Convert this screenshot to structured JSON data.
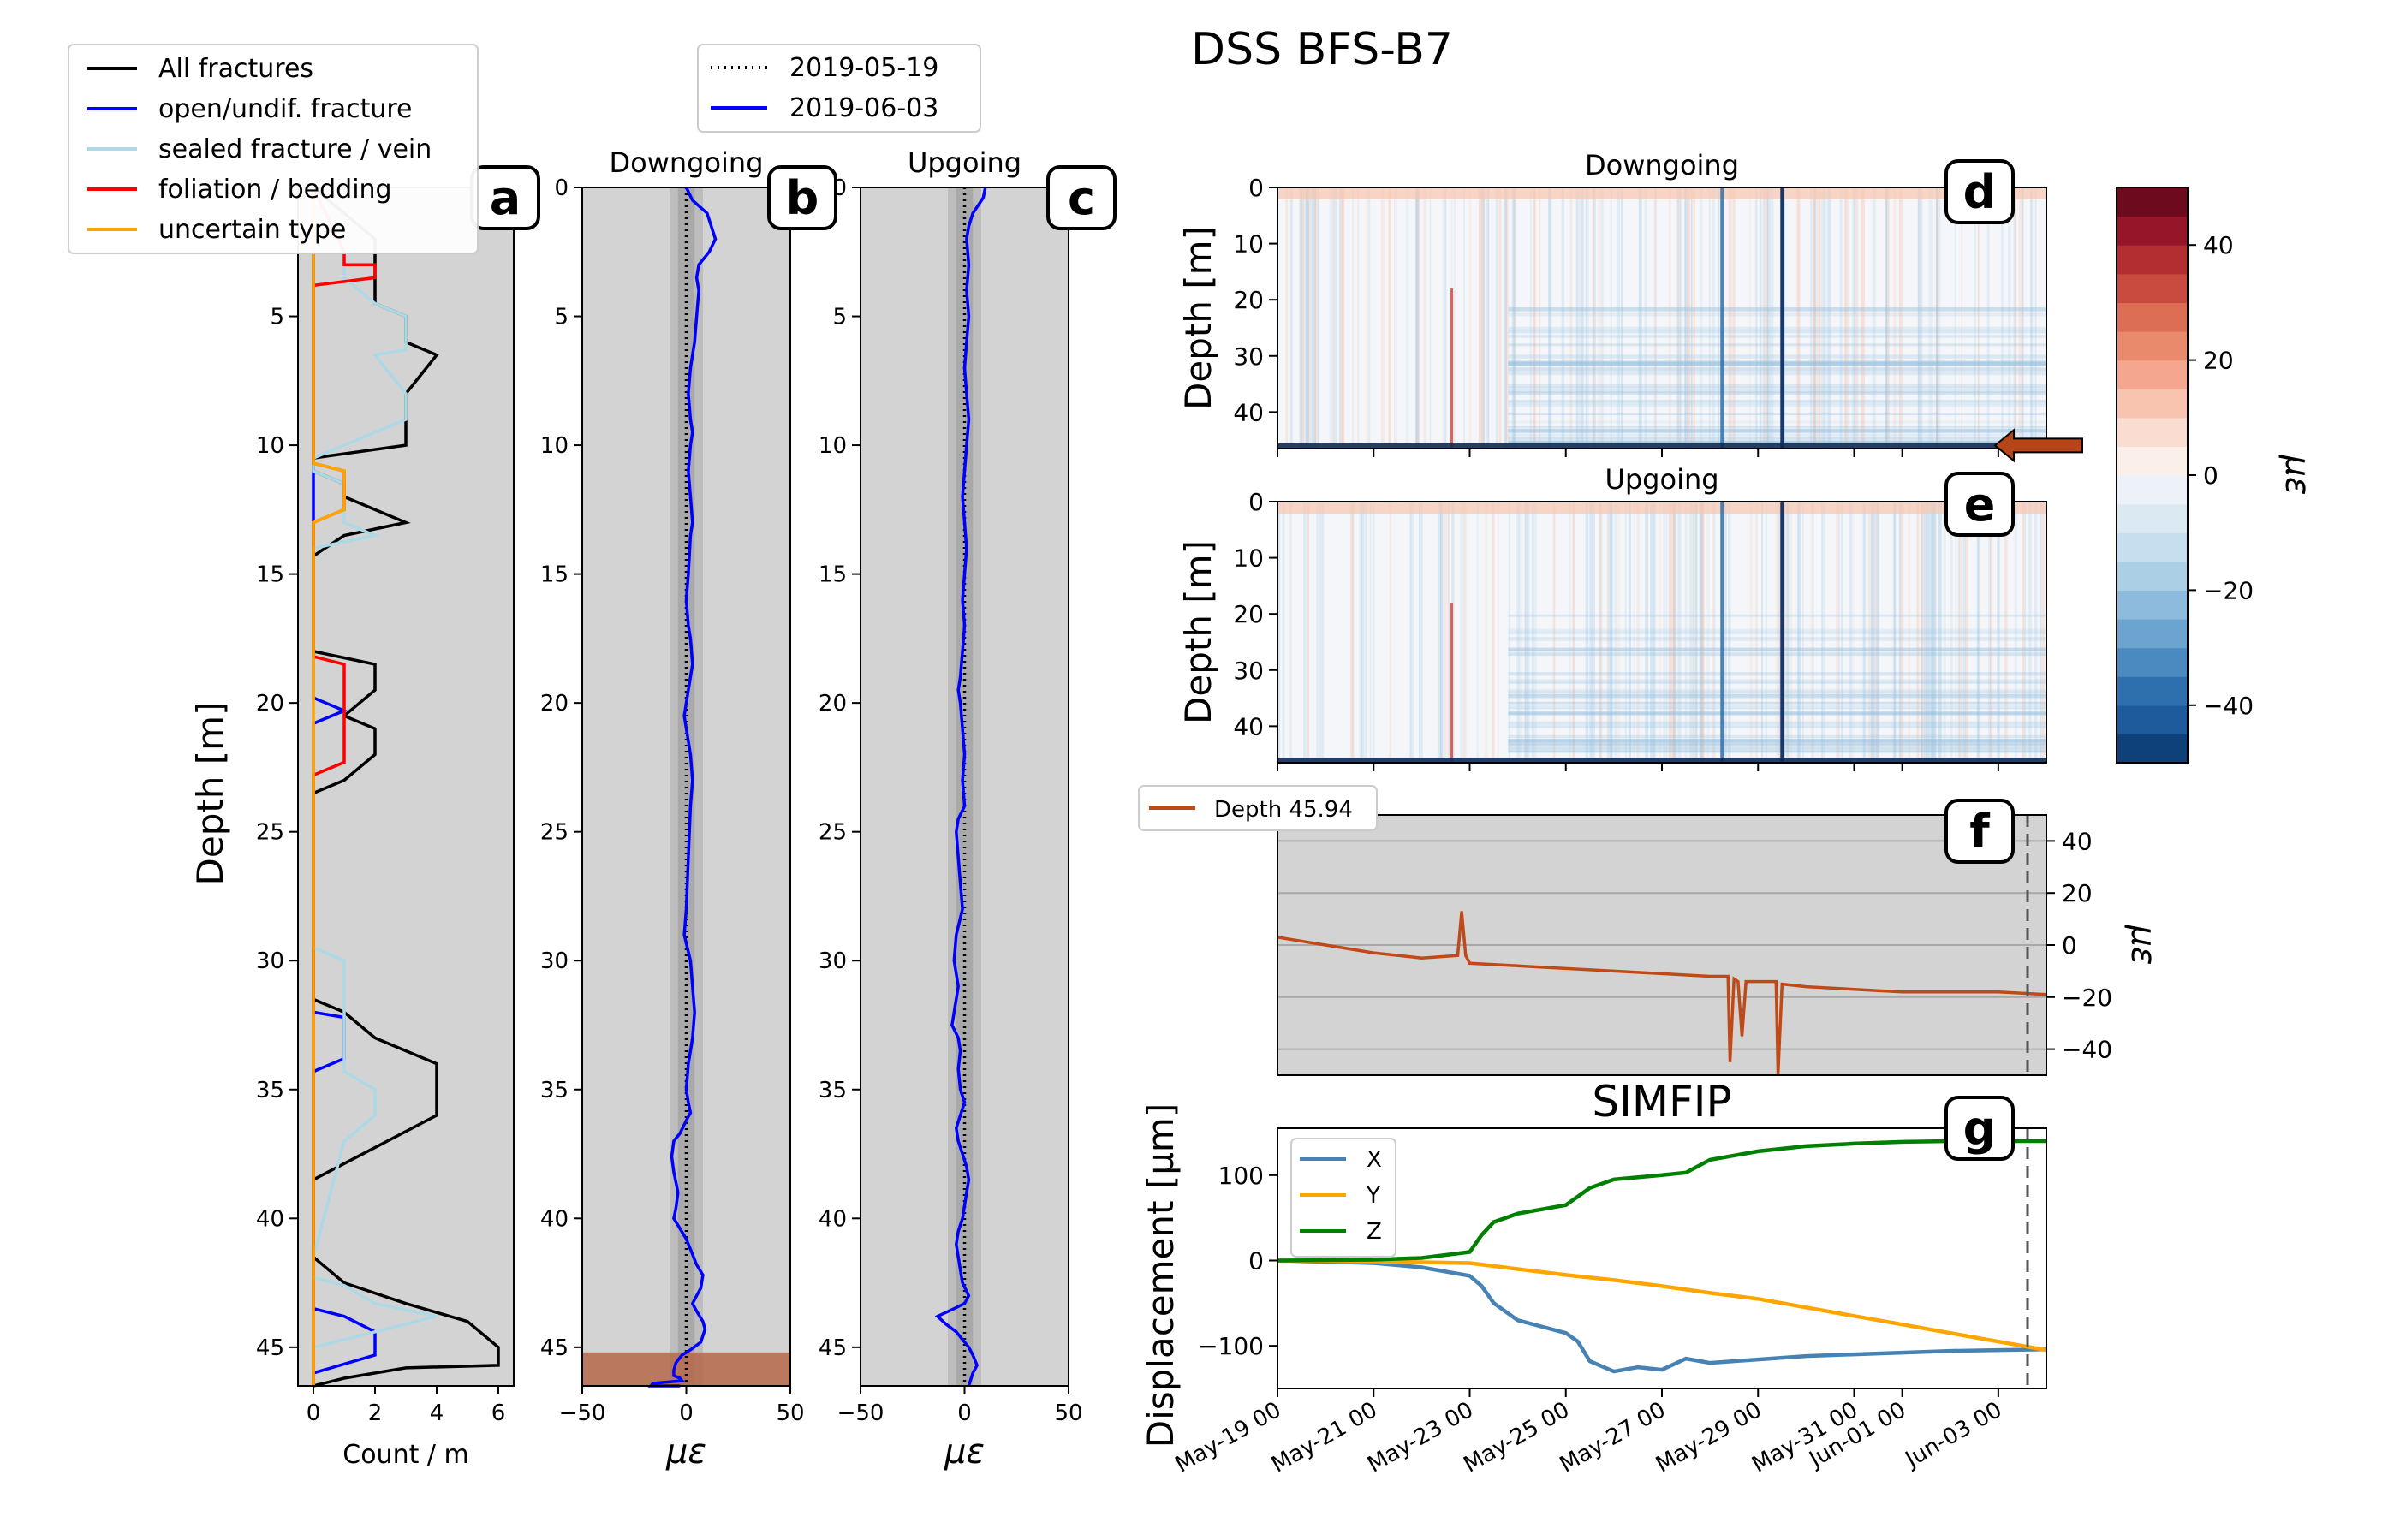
{
  "figure_title": "DSS BFS-B7",
  "panel_letters": [
    "a",
    "b",
    "c",
    "d",
    "e",
    "f",
    "g"
  ],
  "colors": {
    "panel_bg": "#d3d3d3",
    "band_dark": "#a9a9a9",
    "all_fractures": "#000000",
    "open_fracture": "#0000ff",
    "sealed_fracture": "#add8e6",
    "foliation": "#ff0000",
    "uncertain": "#ffa500",
    "strain_trace": "#0000ff",
    "depth_trace": "#c04a17",
    "highlight_band": "#b5674a",
    "arrow": "#b5461a",
    "simfip_x": "#4682b4",
    "simfip_y": "#ffa500",
    "simfip_z": "#008000"
  },
  "chart_data": [
    {
      "panel": "a",
      "type": "line",
      "xlabel": "Count / m",
      "ylabel": "Depth [m]",
      "xlim": [
        -0.5,
        6.5
      ],
      "ylim": [
        46.5,
        0
      ],
      "x_ticks": [
        0,
        2,
        4,
        6
      ],
      "y_ticks": [
        5,
        10,
        15,
        20,
        25,
        30,
        35,
        40,
        45
      ],
      "legend": [
        "All fractures",
        "open/undif. fracture",
        "sealed fracture / vein",
        "foliation / bedding",
        "uncertain type"
      ],
      "series": [
        {
          "name": "All fractures",
          "color": "#000000",
          "x": [
            0,
            2,
            2,
            2,
            3,
            3,
            4,
            3,
            3,
            0,
            0,
            1,
            1,
            3,
            1,
            0,
            0,
            2,
            2,
            1,
            2,
            2,
            1,
            0,
            0,
            0,
            1,
            2,
            4,
            4,
            0,
            0,
            0,
            1,
            3,
            5,
            6,
            6,
            3,
            1,
            0,
            0
          ],
          "y": [
            0,
            2,
            3.5,
            4.5,
            5,
            6,
            6.5,
            8,
            10,
            10.5,
            11,
            11.5,
            12,
            13,
            13.5,
            14.3,
            18,
            18.5,
            19.5,
            20.5,
            21,
            22,
            23,
            23.5,
            29.5,
            31.5,
            32,
            33,
            34,
            36,
            38.5,
            40,
            41.5,
            42.5,
            43.3,
            44,
            45,
            45.7,
            45.8,
            46.2,
            46.5,
            46.5
          ]
        },
        {
          "name": "open/undif. fracture",
          "color": "#0000ff",
          "x": [
            0,
            0,
            1,
            0,
            0,
            0,
            1,
            1,
            0,
            0,
            0,
            1,
            2,
            2,
            0,
            0
          ],
          "y": [
            0,
            19.8,
            20.3,
            20.8,
            21,
            32,
            32.2,
            33.8,
            34.3,
            40,
            43.5,
            43.8,
            44.4,
            45.3,
            46,
            46.5
          ]
        },
        {
          "name": "sealed fracture / vein",
          "color": "#add8e6",
          "x": [
            0,
            1,
            1,
            2,
            3,
            3,
            2,
            3,
            3,
            0,
            0,
            1,
            1,
            1,
            2,
            0,
            0,
            1,
            1,
            1,
            2,
            2,
            1,
            0,
            0,
            1,
            2,
            4,
            2,
            0,
            0
          ],
          "y": [
            0,
            2,
            3.5,
            4.5,
            5,
            6.3,
            6.5,
            8,
            9,
            10.5,
            11,
            11.5,
            12.5,
            13,
            13.5,
            14,
            29.5,
            30,
            32,
            34.3,
            35,
            36,
            37,
            41.5,
            42.3,
            42.6,
            43.3,
            43.8,
            44.4,
            45,
            46.5
          ]
        },
        {
          "name": "foliation / bedding",
          "color": "#ff0000",
          "x": [
            0,
            1,
            1,
            2,
            2,
            0,
            0,
            1,
            1,
            0,
            0,
            0,
            1,
            1,
            1,
            0,
            0
          ],
          "y": [
            0,
            2.5,
            3,
            3,
            3.5,
            3.8,
            10.7,
            11,
            12.5,
            13,
            18,
            18.2,
            18.5,
            19.5,
            22.3,
            22.8,
            46.5
          ]
        },
        {
          "name": "uncertain type",
          "color": "#ffa500",
          "x": [
            0,
            0,
            1,
            1,
            0,
            0
          ],
          "y": [
            0,
            10.7,
            11,
            12.5,
            13,
            46.5
          ]
        }
      ]
    },
    {
      "panel": "b",
      "type": "line",
      "title": "Downgoing",
      "xlabel": "με",
      "xlim": [
        -50,
        50
      ],
      "ylim": [
        46.5,
        0
      ],
      "x_ticks": [
        -50,
        0,
        50
      ],
      "y_ticks": [
        0,
        5,
        10,
        15,
        20,
        25,
        30,
        35,
        40,
        45
      ],
      "light_band": [
        -8,
        8
      ],
      "dark_band": [
        -4,
        4
      ],
      "highlight_depth_range": [
        45.2,
        46.5
      ],
      "legend": [
        "2019-05-19",
        "2019-06-03"
      ],
      "series": [
        {
          "name": "2019-05-19",
          "style": "dotted",
          "color": "#000000",
          "x": [
            0,
            0
          ],
          "y": [
            0,
            46.5
          ]
        },
        {
          "name": "2019-06-03",
          "color": "#0000ff",
          "x": [
            0,
            3,
            10,
            14,
            11,
            6,
            5,
            6,
            5,
            4,
            3,
            2,
            1,
            2,
            3,
            2,
            1,
            2,
            3,
            2,
            1,
            0,
            1,
            2,
            3,
            1,
            -1,
            2,
            3,
            2,
            1,
            0,
            -1,
            2,
            3,
            4,
            3,
            2,
            1,
            0,
            1,
            2,
            0,
            -3,
            -6,
            -7,
            -6,
            -5,
            -4,
            -5,
            -6,
            -3,
            0,
            2,
            5,
            8,
            7,
            5,
            3,
            5,
            8,
            9,
            7,
            2,
            -2,
            -5,
            -6,
            -6,
            -3,
            -2,
            -16,
            -17,
            -9,
            -3
          ],
          "y": [
            0,
            0.5,
            1,
            2,
            2.5,
            3,
            3.5,
            4,
            5,
            6,
            6.5,
            7,
            8,
            9,
            9.5,
            10,
            11,
            12,
            13,
            13.5,
            15,
            16,
            17,
            17.5,
            18.5,
            19.5,
            20.5,
            22,
            23,
            24,
            26,
            28,
            29,
            30,
            31,
            32,
            33,
            33.5,
            34,
            35,
            35.5,
            35.9,
            36.2,
            36.7,
            37,
            37.6,
            38.2,
            38.6,
            39,
            39.6,
            40,
            40.4,
            40.8,
            41.2,
            41.8,
            42.2,
            42.7,
            43,
            43.3,
            43.6,
            44,
            44.3,
            44.8,
            45.1,
            45.3,
            45.6,
            45.9,
            46.1,
            46.2,
            46.3,
            46.4,
            46.5,
            46.5,
            46.5
          ]
        }
      ]
    },
    {
      "panel": "c",
      "type": "line",
      "title": "Upgoing",
      "xlabel": "με",
      "xlim": [
        -50,
        50
      ],
      "ylim": [
        46.5,
        0
      ],
      "x_ticks": [
        -50,
        0,
        50
      ],
      "y_ticks": [
        0,
        5,
        10,
        15,
        20,
        25,
        30,
        35,
        40,
        45
      ],
      "light_band": [
        -8,
        8
      ],
      "dark_band": [
        -4,
        4
      ],
      "series": [
        {
          "name": "2019-05-19",
          "style": "dotted",
          "color": "#000000",
          "x": [
            0,
            0
          ],
          "y": [
            0,
            46.5
          ]
        },
        {
          "name": "2019-06-03",
          "color": "#0000ff",
          "x": [
            10,
            9,
            4,
            2,
            1,
            2,
            1,
            2,
            1,
            0,
            1,
            2,
            1,
            0,
            -1,
            0,
            1,
            0,
            -1,
            0,
            -1,
            -2,
            -3,
            -2,
            -1,
            0,
            -1,
            0,
            -3,
            -4,
            -3,
            -2,
            -1,
            -4,
            -5,
            -3,
            -5,
            -6,
            -3,
            -2,
            -3,
            -2,
            0,
            -2,
            -4,
            -3,
            -1,
            1,
            2,
            1,
            -1,
            -3,
            -4,
            -3,
            -2,
            -1,
            2,
            0,
            -5,
            -13,
            -9,
            -4,
            -1,
            2,
            4,
            6,
            4,
            2
          ],
          "y": [
            0,
            0.4,
            1,
            1.5,
            2,
            3,
            4,
            5,
            6,
            7,
            8,
            9,
            10,
            11,
            12,
            13,
            14,
            15,
            16,
            17,
            18,
            19,
            19.5,
            20,
            21,
            22,
            23,
            24,
            24.5,
            25,
            26,
            27,
            28,
            29,
            30,
            31,
            32,
            32.5,
            33,
            33.5,
            34.2,
            35,
            35.5,
            36,
            36.5,
            37,
            37.5,
            38,
            38.5,
            39,
            40,
            40.5,
            41,
            41.5,
            42,
            42.5,
            43,
            43.3,
            43.5,
            43.8,
            44.1,
            44.4,
            44.7,
            45,
            45.3,
            45.7,
            46,
            46.5
          ]
        }
      ]
    },
    {
      "panel": "d",
      "type": "heatmap",
      "title": "Downgoing",
      "ylabel": "Depth [m]",
      "ylim": [
        46.5,
        0
      ],
      "y_ticks": [
        0,
        10,
        20,
        30,
        40
      ],
      "colorbar": {
        "label": "με",
        "range": [
          -50,
          50
        ],
        "ticks": [
          40,
          20,
          0,
          -20,
          -40
        ]
      },
      "marked_depth": 45.94
    },
    {
      "panel": "e",
      "type": "heatmap",
      "title": "Upgoing",
      "ylabel": "Depth [m]",
      "ylim": [
        46.5,
        0
      ],
      "y_ticks": [
        0,
        10,
        20,
        30,
        40
      ]
    },
    {
      "panel": "f",
      "type": "line",
      "ylabel": "με",
      "ylim": [
        -50,
        50
      ],
      "y_ticks": [
        40,
        20,
        0,
        -20,
        -40
      ],
      "legend": [
        "Depth 45.94"
      ],
      "xlim": [
        "2019-05-19",
        "2019-06-04"
      ],
      "series": [
        {
          "name": "Depth 45.94",
          "color": "#c04a17",
          "x": [
            "2019-05-19",
            "2019-05-20",
            "2019-05-21",
            "2019-05-22",
            "2019-05-22 18:00",
            "2019-05-22 20:00",
            "2019-05-22 22:00",
            "2019-05-23",
            "2019-05-24",
            "2019-05-25",
            "2019-05-26",
            "2019-05-27",
            "2019-05-28",
            "2019-05-28 09:00",
            "2019-05-28 10:00",
            "2019-05-28 12:00",
            "2019-05-28 14:00",
            "2019-05-28 16:00",
            "2019-05-28 18:00",
            "2019-05-29",
            "2019-05-29 09:00",
            "2019-05-29 10:00",
            "2019-05-29 12:00",
            "2019-05-30",
            "2019-05-31",
            "2019-06-01",
            "2019-06-02",
            "2019-06-03",
            "2019-06-04"
          ],
          "y": [
            3,
            0,
            -3,
            -5,
            -4,
            13,
            -4,
            -7,
            -8,
            -9,
            -10,
            -11,
            -12,
            -12,
            -45,
            -13,
            -14,
            -35,
            -14,
            -14,
            -14,
            -50,
            -15,
            -16,
            -17,
            -18,
            -18,
            -18,
            -19
          ]
        }
      ]
    },
    {
      "panel": "g",
      "type": "line",
      "title": "SIMFIP",
      "ylabel": "Displacement [μm]",
      "ylim": [
        -150,
        155
      ],
      "y_ticks": [
        100,
        0,
        -100
      ],
      "x_tick_labels": [
        "May-19 00",
        "May-21 00",
        "May-23 00",
        "May-25 00",
        "May-27 00",
        "May-29 00",
        "May-31 00",
        "Jun-01 00",
        "Jun-03 00"
      ],
      "legend": [
        "X",
        "Y",
        "Z"
      ],
      "xlim": [
        "2019-05-19",
        "2019-06-04"
      ],
      "series": [
        {
          "name": "X",
          "color": "#4682b4",
          "x": [
            "2019-05-19",
            "2019-05-21",
            "2019-05-22",
            "2019-05-23",
            "2019-05-23 06:00",
            "2019-05-23 12:00",
            "2019-05-24",
            "2019-05-25",
            "2019-05-25 06:00",
            "2019-05-25 12:00",
            "2019-05-26",
            "2019-05-26 12:00",
            "2019-05-27",
            "2019-05-27 12:00",
            "2019-05-28",
            "2019-05-29",
            "2019-05-30",
            "2019-05-31",
            "2019-06-01",
            "2019-06-02",
            "2019-06-03",
            "2019-06-04"
          ],
          "y": [
            0,
            -3,
            -8,
            -18,
            -30,
            -50,
            -70,
            -85,
            -95,
            -118,
            -130,
            -125,
            -128,
            -115,
            -120,
            -116,
            -112,
            -110,
            -108,
            -106,
            -105,
            -104
          ]
        },
        {
          "name": "Y",
          "color": "#ffa500",
          "x": [
            "2019-05-19",
            "2019-05-21",
            "2019-05-22",
            "2019-05-23",
            "2019-05-24",
            "2019-05-25",
            "2019-05-26",
            "2019-05-27",
            "2019-05-28",
            "2019-05-29",
            "2019-05-30",
            "2019-05-31",
            "2019-06-01",
            "2019-06-02",
            "2019-06-03",
            "2019-06-04"
          ],
          "y": [
            0,
            -1,
            -2,
            -3,
            -10,
            -17,
            -23,
            -30,
            -38,
            -45,
            -55,
            -65,
            -75,
            -85,
            -95,
            -105
          ]
        },
        {
          "name": "Z",
          "color": "#008000",
          "x": [
            "2019-05-19",
            "2019-05-21",
            "2019-05-22",
            "2019-05-23",
            "2019-05-23 06:00",
            "2019-05-23 12:00",
            "2019-05-24",
            "2019-05-25",
            "2019-05-25 12:00",
            "2019-05-26",
            "2019-05-27",
            "2019-05-27 12:00",
            "2019-05-28",
            "2019-05-29",
            "2019-05-30",
            "2019-05-31",
            "2019-06-01",
            "2019-06-02",
            "2019-06-03",
            "2019-06-04"
          ],
          "y": [
            0,
            1,
            3,
            10,
            30,
            45,
            55,
            65,
            85,
            95,
            100,
            103,
            118,
            128,
            134,
            137,
            139,
            140,
            140,
            140
          ]
        }
      ]
    }
  ]
}
